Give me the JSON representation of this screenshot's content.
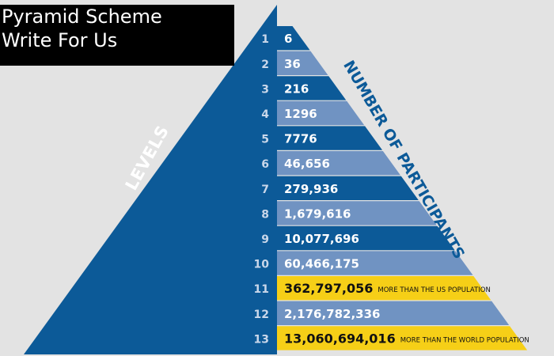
{
  "title": {
    "line1": "Pyramid Scheme",
    "line2": "Write For Us"
  },
  "pyramid": {
    "left_label": "LEVELS",
    "right_label": "NUMBER OF PARTICIPANTS",
    "colors": {
      "background": "#e3e3e3",
      "left_face": "#0c5a98",
      "band_dark": "#0c5a98",
      "band_light": "#7093c2",
      "band_highlight": "#f6cf17",
      "level_number": "#c9d7ea",
      "label_text": "#ffffff",
      "highlight_text": "#111111"
    },
    "levels": [
      {
        "level": "1",
        "participants": "6",
        "note": "",
        "highlight": false
      },
      {
        "level": "2",
        "participants": "36",
        "note": "",
        "highlight": false
      },
      {
        "level": "3",
        "participants": "216",
        "note": "",
        "highlight": false
      },
      {
        "level": "4",
        "participants": "1296",
        "note": "",
        "highlight": false
      },
      {
        "level": "5",
        "participants": "7776",
        "note": "",
        "highlight": false
      },
      {
        "level": "6",
        "participants": "46,656",
        "note": "",
        "highlight": false
      },
      {
        "level": "7",
        "participants": "279,936",
        "note": "",
        "highlight": false
      },
      {
        "level": "8",
        "participants": "1,679,616",
        "note": "",
        "highlight": false
      },
      {
        "level": "9",
        "participants": "10,077,696",
        "note": "",
        "highlight": false
      },
      {
        "level": "10",
        "participants": "60,466,175",
        "note": "",
        "highlight": false
      },
      {
        "level": "11",
        "participants": "362,797,056",
        "note": "MORE THAN THE US POPULATION",
        "highlight": true
      },
      {
        "level": "12",
        "participants": "2,176,782,336",
        "note": "",
        "highlight": false
      },
      {
        "level": "13",
        "participants": "13,060,694,016",
        "note": "MORE THAN THE WORLD POPULATION",
        "highlight": true
      }
    ]
  }
}
